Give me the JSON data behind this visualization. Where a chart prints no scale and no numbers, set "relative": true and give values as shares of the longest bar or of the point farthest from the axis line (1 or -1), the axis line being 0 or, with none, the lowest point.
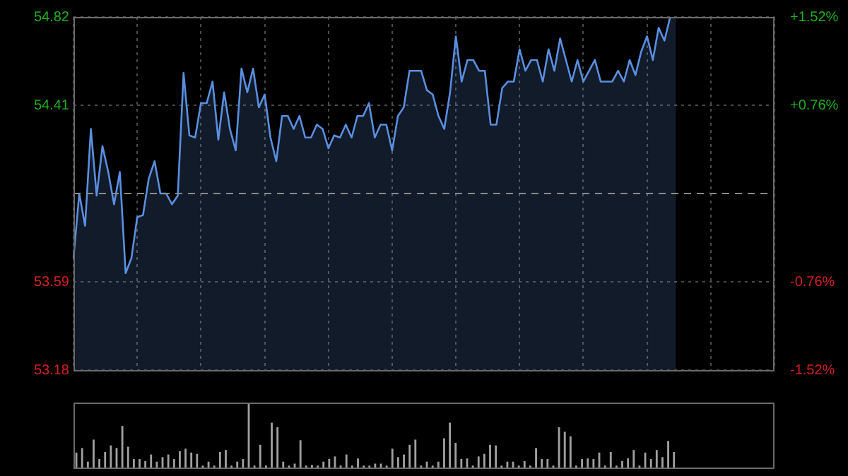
{
  "chart_data": [
    {
      "type": "area",
      "categories": [
        null,
        null,
        null,
        null,
        null,
        null,
        null,
        null,
        null,
        null,
        null,
        null,
        null,
        null,
        null,
        null,
        null,
        null,
        null,
        null,
        null,
        null,
        null,
        null,
        null,
        null,
        null,
        null,
        null,
        null,
        null,
        null,
        null,
        null,
        null,
        null,
        null,
        null,
        null,
        null,
        null,
        null,
        null,
        null,
        null,
        null,
        null,
        null,
        null,
        null,
        null,
        null,
        null,
        null,
        null,
        null,
        null,
        null,
        null,
        null,
        null,
        null,
        null,
        null,
        null,
        null,
        null,
        null,
        null,
        null,
        null,
        null,
        null,
        null,
        null,
        null,
        null,
        null,
        null,
        null,
        null,
        null,
        null,
        null,
        null,
        null,
        null,
        null,
        null,
        null,
        null,
        null,
        null,
        null,
        null,
        null,
        null,
        null,
        null,
        null,
        null,
        null,
        null,
        null,
        null,
        null,
        null,
        null,
        null,
        null,
        null,
        null,
        null,
        null,
        null,
        null,
        null,
        null,
        null,
        null,
        null,
        null
      ],
      "series": [
        {
          "color": "#5a8fe0",
          "values": [
            53.7,
            54.0,
            53.85,
            54.3,
            53.99,
            54.22,
            54.1,
            53.95,
            54.1,
            53.63,
            53.7,
            53.89,
            53.9,
            54.07,
            54.15,
            54.0,
            54.0,
            53.95,
            53.99,
            54.56,
            54.27,
            54.26,
            54.42,
            54.42,
            54.52,
            54.25,
            54.47,
            54.3,
            54.2,
            54.58,
            54.47,
            54.58,
            54.4,
            54.46,
            54.26,
            54.15,
            54.36,
            54.36,
            54.3,
            54.36,
            54.26,
            54.26,
            54.32,
            54.3,
            54.21,
            54.27,
            54.26,
            54.32,
            54.26,
            54.36,
            54.36,
            54.42,
            54.26,
            54.32,
            54.32,
            54.2,
            54.36,
            54.4,
            54.57,
            54.57,
            54.57,
            54.48,
            54.46,
            54.36,
            54.3,
            54.47,
            54.73,
            54.52,
            54.62,
            54.62,
            54.57,
            54.57,
            54.32,
            54.32,
            54.49,
            54.52,
            54.52,
            54.67,
            54.57,
            54.62,
            54.62,
            54.52,
            54.67,
            54.57,
            54.72,
            54.62,
            54.52,
            54.62,
            54.52,
            54.57,
            54.62,
            54.52,
            54.52,
            54.52,
            54.57,
            54.52,
            54.62,
            54.55,
            54.66,
            54.73,
            54.62,
            54.77,
            54.71,
            54.82,
            54.82,
            null,
            null,
            null,
            null,
            null,
            null,
            null,
            null,
            null,
            null,
            null,
            null,
            null,
            null,
            null,
            null,
            null
          ]
        }
      ],
      "ylim": [
        53.18,
        54.82
      ],
      "yticks": [
        53.18,
        53.59,
        54.41,
        54.82
      ],
      "y2lim": [
        -1.52,
        1.52
      ],
      "y2ticks": [
        {
          "value": -1.52,
          "label": "-1.52%"
        },
        {
          "value": -0.76,
          "label": "-0.76%"
        },
        {
          "value": 0.76,
          "label": "+0.76%"
        },
        {
          "value": 1.52,
          "label": "+1.52%"
        }
      ],
      "ref_lines": [
        {
          "axis": "y",
          "value": 54.0,
          "color": "#8a8a8a",
          "line_style": "dashed"
        }
      ],
      "grid": true,
      "marker": "none",
      "legend": false
    },
    {
      "type": "bar",
      "relative": true,
      "categories": [
        null,
        null,
        null,
        null,
        null,
        null,
        null,
        null,
        null,
        null,
        null,
        null,
        null,
        null,
        null,
        null,
        null,
        null,
        null,
        null,
        null,
        null,
        null,
        null,
        null,
        null,
        null,
        null,
        null,
        null,
        null,
        null,
        null,
        null,
        null,
        null,
        null,
        null,
        null,
        null,
        null,
        null,
        null,
        null,
        null,
        null,
        null,
        null,
        null,
        null,
        null,
        null,
        null,
        null,
        null,
        null,
        null,
        null,
        null,
        null,
        null,
        null,
        null,
        null,
        null,
        null,
        null,
        null,
        null,
        null,
        null,
        null,
        null,
        null,
        null,
        null,
        null,
        null,
        null,
        null,
        null,
        null,
        null,
        null,
        null,
        null,
        null,
        null,
        null,
        null,
        null,
        null,
        null,
        null,
        null,
        null,
        null,
        null,
        null,
        null,
        null,
        null,
        null,
        null,
        null,
        null,
        null,
        null,
        null,
        null,
        null,
        null,
        null,
        null,
        null,
        null,
        null,
        null,
        null,
        null,
        null,
        null
      ],
      "values": [
        0.23,
        0.3,
        0.09,
        0.43,
        0.13,
        0.24,
        0.34,
        0.3,
        0.64,
        0.32,
        0.13,
        0.13,
        0.1,
        0.2,
        0.09,
        0.16,
        0.2,
        0.13,
        0.25,
        0.29,
        0.23,
        0.21,
        0.03,
        0.09,
        0.03,
        0.24,
        0.27,
        0.03,
        0.09,
        0.13,
        1,
        0.03,
        0.35,
        0.03,
        0.69,
        0.62,
        0.09,
        0.03,
        0.06,
        0.42,
        0.03,
        0.04,
        0.03,
        0.09,
        0.13,
        0.17,
        0.03,
        0.2,
        0.03,
        0.14,
        0.03,
        0.03,
        0.06,
        0.06,
        0.03,
        0.29,
        0.16,
        0.2,
        0.35,
        0.43,
        0.03,
        0.09,
        0.03,
        0.09,
        0.45,
        0.69,
        0.38,
        0.13,
        0.14,
        0.03,
        0.17,
        0.21,
        0.35,
        0.34,
        0.03,
        0.09,
        0.09,
        0.03,
        0.1,
        0.03,
        0.3,
        0.13,
        0.13,
        0.03,
        0.62,
        0.55,
        0.48,
        0.03,
        0.13,
        0.14,
        0.13,
        0.23,
        0.03,
        0.24,
        0.03,
        0.1,
        0.14,
        0.27,
        0.03,
        0.23,
        0.13,
        0.27,
        0.16,
        0.41,
        0.24,
        null,
        null,
        null,
        null,
        null,
        null,
        null,
        null,
        null,
        null,
        null,
        null,
        null,
        null,
        null,
        null,
        null
      ],
      "color": "#a0a0a0",
      "legend": false
    }
  ]
}
